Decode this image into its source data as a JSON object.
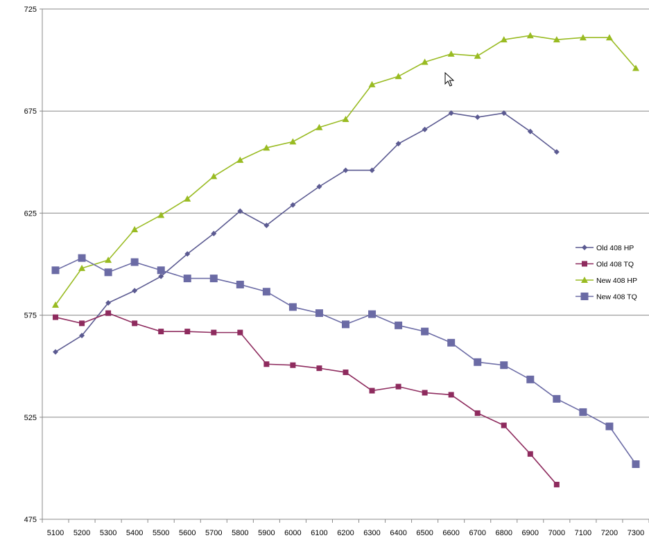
{
  "chart_data": {
    "type": "line",
    "title": "",
    "xlabel": "",
    "ylabel": "",
    "x": [
      5100,
      5200,
      5300,
      5400,
      5500,
      5600,
      5700,
      5800,
      5900,
      6000,
      6100,
      6200,
      6300,
      6400,
      6500,
      6600,
      6700,
      6800,
      6900,
      7000,
      7100,
      7200,
      7300
    ],
    "x_tick_labels": [
      "5100",
      "5200",
      "5300",
      "5400",
      "5500",
      "5600",
      "5700",
      "5800",
      "5900",
      "6000",
      "6100",
      "6200",
      "6300",
      "6400",
      "6500",
      "6600",
      "6700",
      "6800",
      "6900",
      "7000",
      "7100",
      "7200",
      "7300"
    ],
    "ylim": [
      475,
      725
    ],
    "y_ticks": [
      475,
      525,
      575,
      625,
      675,
      725
    ],
    "y_tick_labels": [
      "475",
      "525",
      "575",
      "625",
      "675",
      "725"
    ],
    "grid": "horizontal",
    "legend_position": "right",
    "series": [
      {
        "name": "Old 408 HP",
        "color": "#5B5A91",
        "marker": "diamond",
        "values": [
          557,
          565,
          581,
          587,
          594,
          605,
          615,
          626,
          619,
          629,
          638,
          646,
          646,
          659,
          666,
          674,
          672,
          674,
          665,
          655,
          null,
          null,
          null
        ]
      },
      {
        "name": "Old 408 TQ",
        "color": "#8E2B5E",
        "marker": "square",
        "values": [
          574,
          571,
          576,
          571,
          567,
          567,
          566.5,
          566.5,
          551,
          550.5,
          549,
          547,
          538,
          540,
          537,
          536,
          527,
          521,
          507,
          492,
          null,
          null,
          null
        ]
      },
      {
        "name": "New 408 HP",
        "color": "#99BB22",
        "marker": "triangle",
        "values": [
          580,
          598,
          602,
          617,
          624,
          632,
          643,
          651,
          657,
          660,
          667,
          671,
          688,
          692,
          699,
          703,
          702,
          710,
          712,
          710,
          711,
          711,
          696
        ]
      },
      {
        "name": "New 408 TQ",
        "color": "#6B6BA5",
        "marker": "square-large",
        "values": [
          597,
          603,
          596,
          601,
          597,
          593,
          593,
          590,
          586.5,
          579,
          576,
          570.5,
          575.5,
          570,
          567,
          561.5,
          552,
          550.5,
          543.5,
          534,
          527.5,
          520.5,
          502
        ]
      }
    ]
  }
}
